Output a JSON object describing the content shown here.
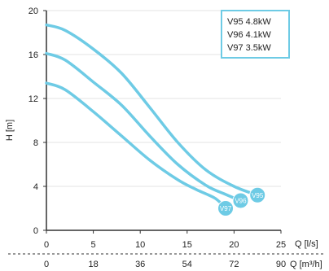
{
  "chart_data": {
    "type": "line",
    "ylabel": "H [m]",
    "xlabel": "Q [l/s]",
    "x2label": "Q [m³/h]",
    "xlim": [
      0,
      25
    ],
    "ylim": [
      0,
      20
    ],
    "x_ticks": [
      0,
      5,
      10,
      15,
      20,
      25
    ],
    "x_tick_labels": [
      "0",
      "5",
      "10",
      "15",
      "20",
      "25"
    ],
    "x2_tick_labels": [
      "0",
      "18",
      "36",
      "54",
      "72",
      "90"
    ],
    "y_ticks": [
      0,
      4,
      8,
      12,
      16,
      20
    ],
    "y_tick_labels": [
      "0",
      "4",
      "8",
      "12",
      "16",
      "20"
    ],
    "grid": "horizontal",
    "legend_position": "top-right",
    "line_color": "#6ecbe5",
    "series": [
      {
        "name": "V95 4.8kW",
        "marker_label": "V95",
        "points": [
          [
            0,
            18.7
          ],
          [
            2,
            18.2
          ],
          [
            5,
            16.5
          ],
          [
            8,
            14.3
          ],
          [
            11,
            11.2
          ],
          [
            14,
            8.0
          ],
          [
            17,
            5.5
          ],
          [
            20,
            4.0
          ],
          [
            22.5,
            3.2
          ]
        ]
      },
      {
        "name": "V96 4.1kW",
        "marker_label": "V96",
        "points": [
          [
            0,
            16.1
          ],
          [
            2,
            15.5
          ],
          [
            5,
            13.5
          ],
          [
            8,
            11.4
          ],
          [
            11,
            8.6
          ],
          [
            14,
            6.0
          ],
          [
            17,
            4.1
          ],
          [
            19,
            3.3
          ],
          [
            20.7,
            2.7
          ]
        ]
      },
      {
        "name": "V97 3.5kW",
        "marker_label": "V97",
        "points": [
          [
            0,
            13.4
          ],
          [
            2,
            12.8
          ],
          [
            5,
            10.8
          ],
          [
            8,
            8.6
          ],
          [
            11,
            6.4
          ],
          [
            14,
            4.6
          ],
          [
            16,
            3.7
          ],
          [
            18,
            2.9
          ],
          [
            19.1,
            2.0
          ]
        ]
      }
    ]
  }
}
